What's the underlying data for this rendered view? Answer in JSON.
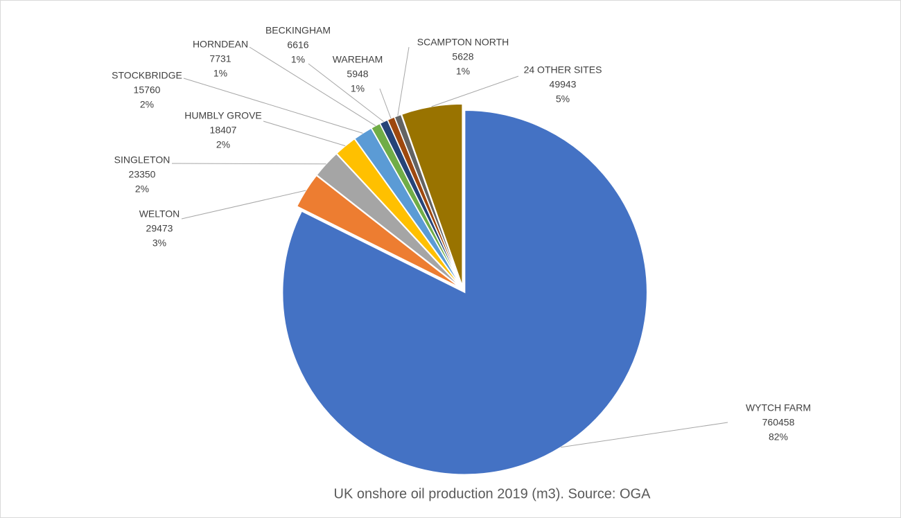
{
  "chart_data": {
    "type": "pie",
    "title": "UK onshore oil production 2019 (m3). Source: OGA",
    "categories": [
      "WYTCH FARM",
      "WELTON",
      "SINGLETON",
      "HUMBLY GROVE",
      "STOCKBRIDGE",
      "HORNDEAN",
      "BECKINGHAM",
      "WAREHAM",
      "SCAMPTON NORTH",
      "24 OTHER SITES"
    ],
    "values": [
      760458,
      29473,
      23350,
      18407,
      15760,
      7731,
      6616,
      5948,
      5628,
      49943
    ],
    "percent_labels": [
      "82%",
      "3%",
      "2%",
      "2%",
      "2%",
      "1%",
      "1%",
      "1%",
      "1%",
      "5%"
    ],
    "colors": [
      "#4472c4",
      "#ed7d31",
      "#a5a5a5",
      "#ffc000",
      "#5b9bd5",
      "#70ad47",
      "#264478",
      "#9e480e",
      "#636363",
      "#997300"
    ]
  }
}
